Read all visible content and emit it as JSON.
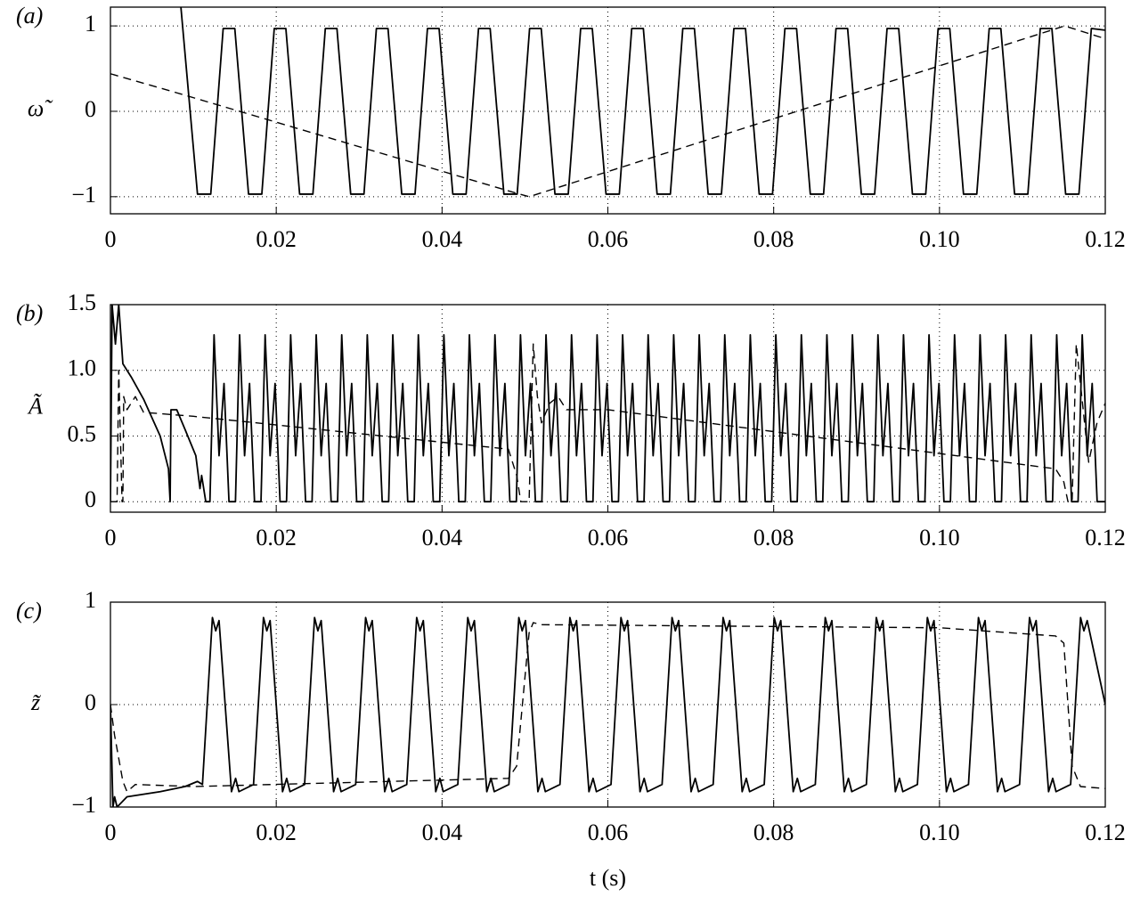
{
  "chart_data": [
    {
      "type": "line",
      "panel_label": "(a)",
      "y_label": "ω̃",
      "grid": true,
      "xlim": [
        0,
        0.12
      ],
      "ylim": [
        -1.2,
        1.22
      ],
      "xticks": [
        0,
        0.02,
        0.04,
        0.06,
        0.08,
        {
          "value": 0.1,
          "label": "0.10"
        },
        0.12
      ],
      "yticks": [
        {
          "value": -1,
          "label": "−1"
        },
        0,
        1
      ],
      "series": [
        {
          "color": "#000000",
          "dash": "solid",
          "x": [
            0.0085,
            0.0105,
            0.0121,
            0.0136,
            0.015,
            0.01666,
            0.01826,
            0.01976,
            0.02116,
            0.02282,
            0.02442,
            0.02592,
            0.02732,
            0.02898,
            0.03058,
            0.03208,
            0.03348,
            0.03514,
            0.03674,
            0.03824,
            0.03964,
            0.0413,
            0.0429,
            0.0444,
            0.0458,
            0.04746,
            0.04906,
            0.05056,
            0.05196,
            0.05362,
            0.05522,
            0.05672,
            0.05812,
            0.05978,
            0.06138,
            0.06288,
            0.06428,
            0.06594,
            0.06754,
            0.06904,
            0.07044,
            0.0721,
            0.0737,
            0.0752,
            0.0766,
            0.07826,
            0.07986,
            0.08136,
            0.08276,
            0.08442,
            0.08602,
            0.08752,
            0.08892,
            0.09058,
            0.09218,
            0.09368,
            0.09508,
            0.09674,
            0.09834,
            0.09984,
            0.10124,
            0.1029,
            0.1045,
            0.106,
            0.1074,
            0.10906,
            0.11066,
            0.11216,
            0.11356,
            0.11522,
            0.11682,
            0.11832,
            0.12
          ],
          "values": [
            1.22,
            -0.97,
            -0.97,
            0.97,
            0.97,
            -0.97,
            -0.97,
            0.97,
            0.97,
            -0.97,
            -0.97,
            0.97,
            0.97,
            -0.97,
            -0.97,
            0.97,
            0.97,
            -0.97,
            -0.97,
            0.97,
            0.97,
            -0.97,
            -0.97,
            0.97,
            0.97,
            -0.97,
            -0.97,
            0.97,
            0.97,
            -0.97,
            -0.97,
            0.97,
            0.97,
            -0.97,
            -0.97,
            0.97,
            0.97,
            -0.97,
            -0.97,
            0.97,
            0.97,
            -0.97,
            -0.97,
            0.97,
            0.97,
            -0.97,
            -0.97,
            0.97,
            0.97,
            -0.97,
            -0.97,
            0.97,
            0.97,
            -0.97,
            -0.97,
            0.97,
            0.97,
            -0.97,
            -0.97,
            0.97,
            0.97,
            -0.97,
            -0.97,
            0.97,
            0.97,
            -0.97,
            -0.97,
            0.97,
            0.97,
            -0.97,
            -0.97,
            0.97,
            0.95
          ]
        },
        {
          "color": "#000000",
          "dash": "dashed",
          "x": [
            0,
            0.0086,
            0.049,
            0.0505,
            0.1151,
            0.12
          ],
          "values": [
            0.44,
            0.2,
            -0.96,
            -1.0,
            1.0,
            0.85
          ]
        }
      ]
    },
    {
      "type": "line",
      "panel_label": "(b)",
      "y_label": "Ã",
      "grid": true,
      "xlim": [
        0,
        0.12
      ],
      "ylim": [
        -0.08,
        1.5
      ],
      "xticks": [
        0,
        0.02,
        0.04,
        0.06,
        0.08,
        {
          "value": 0.1,
          "label": "0.10"
        },
        0.12
      ],
      "yticks": [
        0,
        0.5,
        {
          "value": 1,
          "label": "1.0"
        },
        1.5
      ],
      "series": [
        {
          "color": "#000000",
          "dash": "solid",
          "x": [
            0,
            0.0002,
            0.0006,
            0.001,
            0.0015,
            0.0025,
            0.004,
            0.006,
            0.007,
            0.0072,
            0.0073,
            0.008,
            0.009,
            0.0103,
            0.0108,
            0.011,
            0.0115,
            0.012,
            0.0125,
            0.0131,
            0.0137,
            0.0143,
            0.01508,
            0.01558,
            0.01618,
            0.01678,
            0.01738,
            0.01816,
            0.01866,
            0.01926,
            0.01986,
            0.02046,
            0.02124,
            0.02174,
            0.02234,
            0.02294,
            0.02354,
            0.02432,
            0.02482,
            0.02542,
            0.02602,
            0.02662,
            0.0274,
            0.0279,
            0.0285,
            0.0291,
            0.0297,
            0.03048,
            0.03098,
            0.03158,
            0.03218,
            0.03278,
            0.03356,
            0.03406,
            0.03466,
            0.03526,
            0.03586,
            0.03664,
            0.03714,
            0.03774,
            0.03834,
            0.03894,
            0.03972,
            0.04022,
            0.04082,
            0.04142,
            0.04202,
            0.0428,
            0.0433,
            0.0439,
            0.0445,
            0.0451,
            0.04588,
            0.04638,
            0.04698,
            0.04758,
            0.04818,
            0.04896,
            0.04946,
            0.05006,
            0.05066,
            0.05126,
            0.05204,
            0.05254,
            0.05314,
            0.05374,
            0.05434,
            0.05512,
            0.05562,
            0.05622,
            0.05682,
            0.05742,
            0.0582,
            0.0587,
            0.0593,
            0.0599,
            0.0605,
            0.06128,
            0.06178,
            0.06238,
            0.06298,
            0.06358,
            0.06436,
            0.06486,
            0.06546,
            0.06606,
            0.06666,
            0.06744,
            0.06794,
            0.06854,
            0.06914,
            0.06974,
            0.07052,
            0.07102,
            0.07162,
            0.07222,
            0.07282,
            0.0736,
            0.0741,
            0.0747,
            0.0753,
            0.0759,
            0.07668,
            0.07718,
            0.07778,
            0.07838,
            0.07898,
            0.07976,
            0.08026,
            0.08086,
            0.08146,
            0.08206,
            0.08284,
            0.08334,
            0.08394,
            0.08454,
            0.08514,
            0.08592,
            0.08642,
            0.08702,
            0.08762,
            0.08822,
            0.089,
            0.0895,
            0.0901,
            0.0907,
            0.0913,
            0.09208,
            0.09258,
            0.09318,
            0.09378,
            0.09438,
            0.09516,
            0.09566,
            0.09626,
            0.09686,
            0.09746,
            0.09824,
            0.09874,
            0.09934,
            0.09994,
            0.10054,
            0.10132,
            0.10182,
            0.10242,
            0.10302,
            0.10362,
            0.1044,
            0.1049,
            0.1055,
            0.1061,
            0.1067,
            0.10748,
            0.10798,
            0.10858,
            0.10918,
            0.10978,
            0.11056,
            0.11106,
            0.11166,
            0.11226,
            0.11286,
            0.11364,
            0.11414,
            0.11474,
            0.11534,
            0.11594,
            0.11672,
            0.11722,
            0.11782,
            0.11842,
            0.11902,
            0.12
          ],
          "values": [
            0,
            1.5,
            1.2,
            1.5,
            1.05,
            0.95,
            0.78,
            0.5,
            0.25,
            0,
            0.7,
            0.7,
            0.55,
            0.35,
            0.1,
            0.2,
            0,
            0,
            1.27,
            0.35,
            0.9,
            0,
            0,
            1.27,
            0.35,
            0.9,
            0,
            0,
            1.27,
            0.35,
            0.9,
            0,
            0,
            1.27,
            0.35,
            0.9,
            0,
            0,
            1.27,
            0.35,
            0.9,
            0,
            0,
            1.27,
            0.35,
            0.9,
            0,
            0,
            1.27,
            0.35,
            0.9,
            0,
            0,
            1.27,
            0.35,
            0.9,
            0,
            0,
            1.27,
            0.35,
            0.9,
            0,
            0,
            1.27,
            0.35,
            0.9,
            0,
            0,
            1.27,
            0.35,
            0.9,
            0,
            0,
            1.27,
            0.35,
            0.9,
            0,
            0,
            1.27,
            0.35,
            0.9,
            0,
            0,
            1.27,
            0.35,
            0.9,
            0,
            0,
            1.27,
            0.35,
            0.9,
            0,
            0,
            1.27,
            0.35,
            0.9,
            0,
            0,
            1.27,
            0.35,
            0.9,
            0,
            0,
            1.27,
            0.35,
            0.9,
            0,
            0,
            1.27,
            0.35,
            0.9,
            0,
            0,
            1.27,
            0.35,
            0.9,
            0,
            0,
            1.27,
            0.35,
            0.9,
            0,
            0,
            1.27,
            0.35,
            0.9,
            0,
            0,
            1.27,
            0.35,
            0.9,
            0,
            0,
            1.27,
            0.35,
            0.9,
            0,
            0,
            1.27,
            0.35,
            0.9,
            0,
            0,
            1.27,
            0.35,
            0.9,
            0,
            0,
            1.27,
            0.35,
            0.9,
            0,
            0,
            1.27,
            0.35,
            0.9,
            0,
            0,
            1.27,
            0.35,
            0.9,
            0,
            0,
            1.27,
            0.35,
            0.9,
            0,
            0,
            1.27,
            0.35,
            0.9,
            0,
            0,
            1.27,
            0.35,
            0.9,
            0,
            0,
            1.27,
            0.35,
            0.9,
            0,
            0,
            1.27,
            0.35,
            0.9,
            0,
            0,
            1.27,
            0.35,
            0.9,
            0,
            0
          ]
        },
        {
          "color": "#000000",
          "dash": "dashed",
          "x": [
            0,
            0.0008,
            0.001,
            0.0014,
            0.0015,
            0.0016,
            0.002,
            0.003,
            0.004,
            0.01,
            0.048,
            0.049,
            0.0495,
            0.0505,
            0.051,
            0.0515,
            0.052,
            0.053,
            0.054,
            0.055,
            0.06,
            0.114,
            0.115,
            0.1155,
            0.116,
            0.1165,
            0.117,
            0.118,
            0.119,
            0.12
          ],
          "values": [
            0,
            0,
            1.0,
            0,
            0,
            0.8,
            0.7,
            0.8,
            0.68,
            0.65,
            0.4,
            0.2,
            0,
            0,
            1.2,
            0.8,
            0.6,
            0.75,
            0.8,
            0.7,
            0.7,
            0.25,
            0.15,
            0,
            0,
            1.2,
            0.9,
            0.3,
            0.6,
            0.75
          ]
        }
      ]
    },
    {
      "type": "line",
      "panel_label": "(c)",
      "y_label": "z̃",
      "x_label": "t (s)",
      "grid": true,
      "xlim": [
        0,
        0.12
      ],
      "ylim": [
        -1,
        1
      ],
      "xticks": [
        0,
        0.02,
        0.04,
        0.06,
        0.08,
        {
          "value": 0.1,
          "label": "0.10"
        },
        0.12
      ],
      "yticks": [
        {
          "value": -1,
          "label": "−1"
        },
        0,
        1
      ],
      "series": [
        {
          "color": "#000000",
          "dash": "solid",
          "x": [
            0,
            0.0003,
            0.0005,
            0.0008,
            0.002,
            0.006,
            0.009,
            0.0105,
            0.0111,
            0.0123,
            0.0127,
            0.0131,
            0.0146,
            0.0151,
            0.0155,
            0.01726,
            0.01846,
            0.01886,
            0.01926,
            0.02076,
            0.02126,
            0.02166,
            0.02342,
            0.02462,
            0.02502,
            0.02542,
            0.02692,
            0.02742,
            0.02782,
            0.02958,
            0.03078,
            0.03118,
            0.03158,
            0.03308,
            0.03358,
            0.03398,
            0.03574,
            0.03694,
            0.03734,
            0.03774,
            0.03924,
            0.03974,
            0.04014,
            0.0419,
            0.0431,
            0.0435,
            0.0439,
            0.0454,
            0.0459,
            0.0463,
            0.04806,
            0.04926,
            0.04966,
            0.05006,
            0.05156,
            0.05206,
            0.05246,
            0.05422,
            0.05542,
            0.05582,
            0.05622,
            0.05772,
            0.05822,
            0.05862,
            0.06038,
            0.06158,
            0.06198,
            0.06238,
            0.06388,
            0.06438,
            0.06478,
            0.06654,
            0.06774,
            0.06814,
            0.06854,
            0.07004,
            0.07054,
            0.07094,
            0.0727,
            0.0739,
            0.0743,
            0.0747,
            0.0762,
            0.0767,
            0.0771,
            0.07886,
            0.08006,
            0.08046,
            0.08086,
            0.08236,
            0.08286,
            0.08326,
            0.08502,
            0.08622,
            0.08662,
            0.08702,
            0.08852,
            0.08902,
            0.08942,
            0.09118,
            0.09238,
            0.09278,
            0.09318,
            0.09468,
            0.09518,
            0.09558,
            0.09734,
            0.09854,
            0.09894,
            0.09934,
            0.10084,
            0.10134,
            0.10174,
            0.1035,
            0.1047,
            0.1051,
            0.1055,
            0.107,
            0.1075,
            0.1079,
            0.10966,
            0.11086,
            0.11126,
            0.11166,
            0.11316,
            0.11366,
            0.11406,
            0.11582,
            0.11702,
            0.11742,
            0.11782,
            0.12
          ],
          "values": [
            0,
            -1,
            -0.9,
            -1,
            -0.9,
            -0.85,
            -0.8,
            -0.75,
            -0.78,
            0.85,
            0.72,
            0.82,
            -0.85,
            -0.72,
            -0.85,
            -0.78,
            0.85,
            0.72,
            0.82,
            -0.85,
            -0.72,
            -0.85,
            -0.78,
            0.85,
            0.72,
            0.82,
            -0.85,
            -0.72,
            -0.85,
            -0.78,
            0.85,
            0.72,
            0.82,
            -0.85,
            -0.72,
            -0.85,
            -0.78,
            0.85,
            0.72,
            0.82,
            -0.85,
            -0.72,
            -0.85,
            -0.78,
            0.85,
            0.72,
            0.82,
            -0.85,
            -0.72,
            -0.85,
            -0.78,
            0.85,
            0.72,
            0.82,
            -0.85,
            -0.72,
            -0.85,
            -0.78,
            0.85,
            0.72,
            0.82,
            -0.85,
            -0.72,
            -0.85,
            -0.78,
            0.85,
            0.72,
            0.82,
            -0.85,
            -0.72,
            -0.85,
            -0.78,
            0.85,
            0.72,
            0.82,
            -0.85,
            -0.72,
            -0.85,
            -0.78,
            0.85,
            0.72,
            0.82,
            -0.85,
            -0.72,
            -0.85,
            -0.78,
            0.85,
            0.72,
            0.82,
            -0.85,
            -0.72,
            -0.85,
            -0.78,
            0.85,
            0.72,
            0.82,
            -0.85,
            -0.72,
            -0.85,
            -0.78,
            0.85,
            0.72,
            0.82,
            -0.85,
            -0.72,
            -0.85,
            -0.78,
            0.85,
            0.72,
            0.82,
            -0.85,
            -0.72,
            -0.85,
            -0.78,
            0.85,
            0.72,
            0.82,
            -0.85,
            -0.72,
            -0.85,
            -0.78,
            0.85,
            0.72,
            0.82,
            -0.85,
            -0.72,
            -0.85,
            -0.78,
            0.85,
            0.72,
            0.82,
            0
          ]
        },
        {
          "color": "#000000",
          "dash": "dashed",
          "x": [
            0,
            0.0005,
            0.0015,
            0.002,
            0.003,
            0.01,
            0.048,
            0.049,
            0.0505,
            0.051,
            0.052,
            0.1,
            0.114,
            0.115,
            0.116,
            0.117,
            0.12
          ],
          "values": [
            0,
            -0.3,
            -0.75,
            -0.85,
            -0.78,
            -0.8,
            -0.72,
            -0.6,
            0.7,
            0.8,
            0.78,
            0.75,
            0.67,
            0.6,
            -0.6,
            -0.8,
            -0.82
          ]
        }
      ]
    }
  ]
}
